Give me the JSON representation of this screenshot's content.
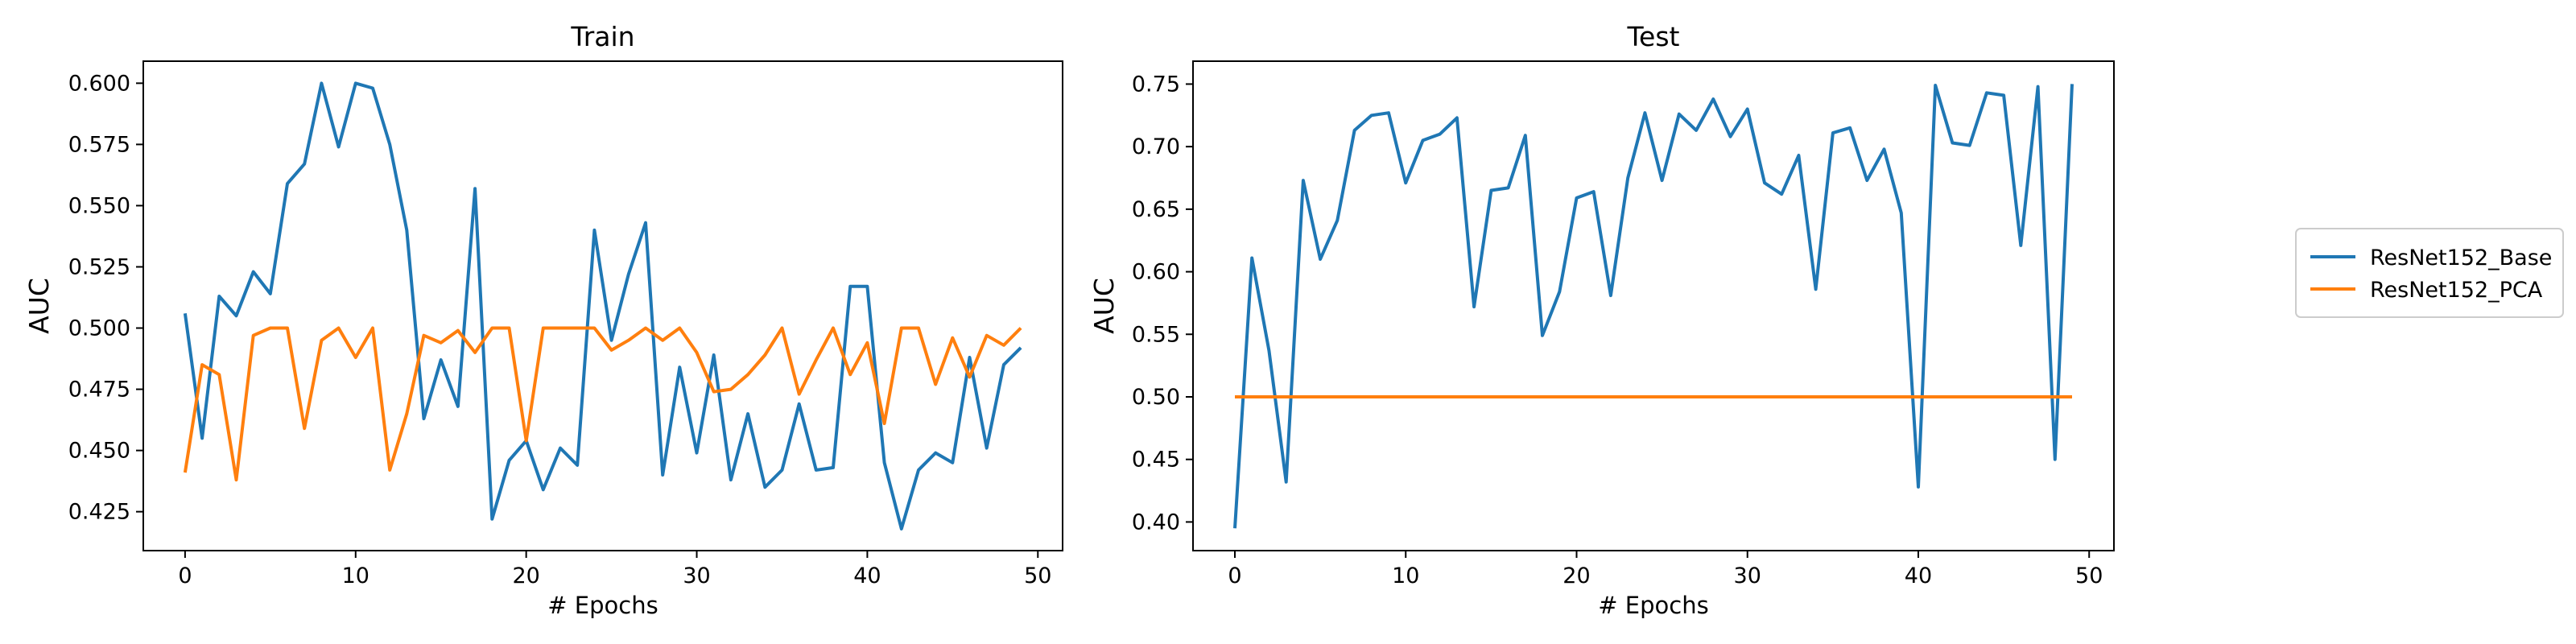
{
  "chart_data": [
    {
      "type": "line",
      "title": "Train",
      "xlabel": "# Epochs",
      "ylabel": "AUC",
      "xlim": [
        -2.45,
        51.45
      ],
      "ylim": [
        0.4091,
        0.609
      ],
      "xticks": [
        0,
        10,
        20,
        30,
        40,
        50
      ],
      "xtick_labels": [
        "0",
        "10",
        "20",
        "30",
        "40",
        "50"
      ],
      "yticks": [
        0.425,
        0.45,
        0.475,
        0.5,
        0.525,
        0.55,
        0.575,
        0.6
      ],
      "ytick_labels": [
        "0.425",
        "0.450",
        "0.475",
        "0.500",
        "0.525",
        "0.550",
        "0.575",
        "0.600"
      ],
      "grid": false,
      "x": [
        0,
        1,
        2,
        3,
        4,
        5,
        6,
        7,
        8,
        9,
        10,
        11,
        12,
        13,
        14,
        15,
        16,
        17,
        18,
        19,
        20,
        21,
        22,
        23,
        24,
        25,
        26,
        27,
        28,
        29,
        30,
        31,
        32,
        33,
        34,
        35,
        36,
        37,
        38,
        39,
        40,
        41,
        42,
        43,
        44,
        45,
        46,
        47,
        48,
        49
      ],
      "series": [
        {
          "name": "ResNet152_Base",
          "color": "#1f77b4",
          "values": [
            0.506,
            0.455,
            0.513,
            0.505,
            0.523,
            0.514,
            0.559,
            0.567,
            0.6,
            0.574,
            0.6,
            0.598,
            0.575,
            0.54,
            0.463,
            0.487,
            0.468,
            0.557,
            0.422,
            0.446,
            0.454,
            0.434,
            0.451,
            0.444,
            0.54,
            0.495,
            0.522,
            0.543,
            0.44,
            0.484,
            0.449,
            0.489,
            0.438,
            0.465,
            0.435,
            0.442,
            0.469,
            0.442,
            0.443,
            0.517,
            0.517,
            0.445,
            0.418,
            0.442,
            0.449,
            0.445,
            0.488,
            0.451,
            0.485,
            0.492
          ]
        },
        {
          "name": "ResNet152_PCA",
          "color": "#ff7f0e",
          "values": [
            0.441,
            0.485,
            0.481,
            0.438,
            0.497,
            0.5,
            0.5,
            0.459,
            0.495,
            0.5,
            0.488,
            0.5,
            0.442,
            0.465,
            0.497,
            0.494,
            0.499,
            0.49,
            0.5,
            0.5,
            0.454,
            0.5,
            0.5,
            0.5,
            0.5,
            0.491,
            0.495,
            0.5,
            0.495,
            0.5,
            0.49,
            0.474,
            0.475,
            0.481,
            0.489,
            0.5,
            0.473,
            0.487,
            0.5,
            0.481,
            0.494,
            0.461,
            0.5,
            0.5,
            0.477,
            0.496,
            0.48,
            0.497,
            0.493,
            0.5
          ]
        }
      ]
    },
    {
      "type": "line",
      "title": "Test",
      "xlabel": "# Epochs",
      "ylabel": "AUC",
      "xlim": [
        -2.45,
        51.45
      ],
      "ylim": [
        0.3771,
        0.7683
      ],
      "xticks": [
        0,
        10,
        20,
        30,
        40,
        50
      ],
      "xtick_labels": [
        "0",
        "10",
        "20",
        "30",
        "40",
        "50"
      ],
      "yticks": [
        0.4,
        0.45,
        0.5,
        0.55,
        0.6,
        0.65,
        0.7,
        0.75
      ],
      "ytick_labels": [
        "0.40",
        "0.45",
        "0.50",
        "0.55",
        "0.60",
        "0.65",
        "0.70",
        "0.75"
      ],
      "grid": false,
      "x": [
        0,
        1,
        2,
        3,
        4,
        5,
        6,
        7,
        8,
        9,
        10,
        11,
        12,
        13,
        14,
        15,
        16,
        17,
        18,
        19,
        20,
        21,
        22,
        23,
        24,
        25,
        26,
        27,
        28,
        29,
        30,
        31,
        32,
        33,
        34,
        35,
        36,
        37,
        38,
        39,
        40,
        41,
        42,
        43,
        44,
        45,
        46,
        47,
        48,
        49
      ],
      "series": [
        {
          "name": "ResNet152_Base",
          "color": "#1f77b4",
          "values": [
            0.395,
            0.611,
            0.537,
            0.432,
            0.673,
            0.61,
            0.641,
            0.713,
            0.725,
            0.727,
            0.671,
            0.705,
            0.71,
            0.723,
            0.572,
            0.665,
            0.667,
            0.709,
            0.549,
            0.584,
            0.659,
            0.664,
            0.581,
            0.675,
            0.727,
            0.673,
            0.726,
            0.713,
            0.738,
            0.708,
            0.73,
            0.671,
            0.662,
            0.693,
            0.586,
            0.711,
            0.715,
            0.673,
            0.698,
            0.647,
            0.428,
            0.749,
            0.703,
            0.701,
            0.743,
            0.741,
            0.621,
            0.748,
            0.45,
            0.75
          ]
        },
        {
          "name": "ResNet152_PCA",
          "color": "#ff7f0e",
          "values": [
            0.5,
            0.5,
            0.5,
            0.5,
            0.5,
            0.5,
            0.5,
            0.5,
            0.5,
            0.5,
            0.5,
            0.5,
            0.5,
            0.5,
            0.5,
            0.5,
            0.5,
            0.5,
            0.5,
            0.5,
            0.5,
            0.5,
            0.5,
            0.5,
            0.5,
            0.5,
            0.5,
            0.5,
            0.5,
            0.5,
            0.5,
            0.5,
            0.5,
            0.5,
            0.5,
            0.5,
            0.5,
            0.5,
            0.5,
            0.5,
            0.5,
            0.5,
            0.5,
            0.5,
            0.5,
            0.5,
            0.5,
            0.5,
            0.5,
            0.5
          ]
        }
      ]
    }
  ],
  "legend": {
    "placement": "right",
    "entries": [
      {
        "label": "ResNet152_Base",
        "color": "#1f77b4"
      },
      {
        "label": "ResNet152_PCA",
        "color": "#ff7f0e"
      }
    ]
  }
}
